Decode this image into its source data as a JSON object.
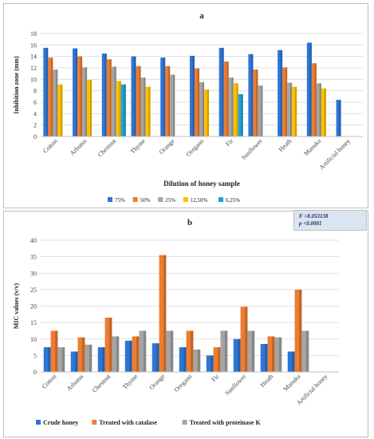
{
  "charts": {
    "a": {
      "type": "bar",
      "title": "a",
      "xlabel": "Dilution of honey sample",
      "ylabel": "Inhibition zone (mm)",
      "ylim": [
        0,
        18
      ],
      "yticks": [
        0,
        2,
        4,
        6,
        8,
        10,
        12,
        14,
        16,
        18
      ],
      "grid": true,
      "legend_position": "bottom",
      "categories": [
        "Cotton",
        "Arbutus",
        "Chestnut",
        "Thyme",
        "Orange",
        "Oregano",
        "Fir",
        "Sunflower",
        "Heath",
        "Manuka",
        "Artificial honey"
      ],
      "series": [
        {
          "name": "75%",
          "color": "#2e75d6",
          "values": [
            15.5,
            15.4,
            14.5,
            14.0,
            13.8,
            14.1,
            15.5,
            14.4,
            15.1,
            16.4,
            6.4
          ]
        },
        {
          "name": "50%",
          "color": "#ed7d31",
          "values": [
            13.8,
            14.0,
            13.5,
            12.3,
            12.3,
            11.9,
            13.1,
            11.7,
            12.1,
            12.8,
            0
          ]
        },
        {
          "name": "25%",
          "color": "#a5a5a5",
          "values": [
            11.7,
            12.1,
            12.2,
            10.3,
            10.8,
            9.5,
            10.3,
            8.9,
            9.4,
            9.3,
            0
          ]
        },
        {
          "name": "12,50%",
          "color": "#ffc000",
          "values": [
            9.1,
            9.9,
            9.7,
            8.7,
            0,
            8.2,
            9.3,
            0,
            8.7,
            8.4,
            0
          ]
        },
        {
          "name": "6,25%",
          "color": "#1aa3d6",
          "values": [
            0,
            0,
            9.1,
            0,
            0,
            0,
            7.4,
            0,
            0,
            0,
            0
          ]
        }
      ]
    },
    "b": {
      "type": "bar",
      "title": "b",
      "xlabel": "",
      "ylabel": "MIC values (v/v)",
      "ylim": [
        0,
        40
      ],
      "yticks": [
        0,
        5,
        10,
        15,
        20,
        25,
        30,
        35,
        40
      ],
      "grid": true,
      "legend_position": "bottom",
      "annotation": [
        "F =8.053138",
        "p <0.0001"
      ],
      "categories": [
        "Cotton",
        "Arbutus",
        "Chestnut",
        "Thyme",
        "Orange",
        "Oregano",
        "Fir",
        "Sunflower",
        "Heath",
        "Manuka",
        "Artificial honey"
      ],
      "series": [
        {
          "name": "Crude honey",
          "color": "#2e75d6",
          "values": [
            7.5,
            6.2,
            7.5,
            9.5,
            8.7,
            7.5,
            5.0,
            10.0,
            8.5,
            6.2,
            0.1
          ]
        },
        {
          "name": "Treated with catalase",
          "color": "#ed7d31",
          "values": [
            12.5,
            10.5,
            16.5,
            10.8,
            35.5,
            12.5,
            7.5,
            19.8,
            10.8,
            25.0,
            0.1
          ]
        },
        {
          "name": "Treated with proteinase K",
          "color": "#a5a5a5",
          "values": [
            7.5,
            8.3,
            10.8,
            12.5,
            12.5,
            6.8,
            12.5,
            12.5,
            10.5,
            12.5,
            0.1
          ]
        }
      ]
    }
  }
}
